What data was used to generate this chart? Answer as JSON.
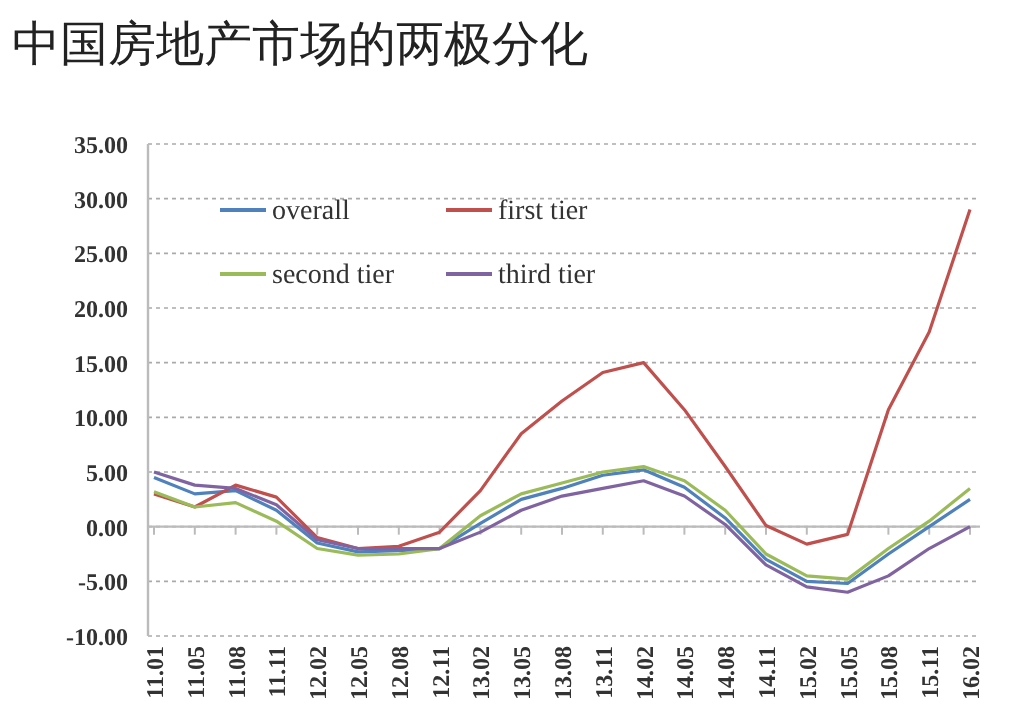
{
  "chart_data": {
    "type": "line",
    "title": "中国房地产市场的两极分化",
    "categories": [
      "11.01",
      "11.05",
      "11.08",
      "11.11",
      "12.02",
      "12.05",
      "12.08",
      "12.11",
      "13.02",
      "13.05",
      "13.08",
      "13.11",
      "14.02",
      "14.05",
      "14.08",
      "14.11",
      "15.02",
      "15.05",
      "15.08",
      "15.11",
      "16.02"
    ],
    "series": [
      {
        "name": "overall",
        "color": "#4f81bd",
        "values": [
          4.5,
          3.0,
          3.3,
          1.5,
          -1.5,
          -2.3,
          -2.2,
          -2.0,
          0.3,
          2.5,
          3.5,
          4.7,
          5.2,
          3.6,
          0.8,
          -3.0,
          -5.0,
          -5.2,
          -2.5,
          0.0,
          2.5
        ]
      },
      {
        "name": "first tier",
        "color": "#c0504d",
        "values": [
          3.0,
          1.8,
          3.8,
          2.7,
          -1.0,
          -2.0,
          -1.8,
          -0.5,
          3.3,
          8.5,
          11.5,
          14.1,
          15.0,
          10.7,
          5.5,
          0.1,
          -1.6,
          -0.7,
          10.7,
          17.8,
          29.0
        ]
      },
      {
        "name": "second tier",
        "color": "#9bbb59",
        "values": [
          3.2,
          1.8,
          2.2,
          0.5,
          -2.0,
          -2.6,
          -2.5,
          -2.0,
          1.0,
          3.0,
          4.0,
          5.0,
          5.5,
          4.2,
          1.5,
          -2.5,
          -4.5,
          -4.8,
          -2.0,
          0.5,
          3.5
        ]
      },
      {
        "name": "third tier",
        "color": "#8064a2",
        "values": [
          5.0,
          3.8,
          3.5,
          2.0,
          -1.2,
          -2.0,
          -2.0,
          -2.0,
          -0.5,
          1.5,
          2.8,
          3.5,
          4.2,
          2.8,
          0.2,
          -3.5,
          -5.5,
          -6.0,
          -4.5,
          -2.0,
          0.0
        ]
      }
    ],
    "ylim": [
      -10,
      35
    ],
    "yticks": [
      {
        "value": -10,
        "label": "-10.00"
      },
      {
        "value": -5,
        "label": "-5.00"
      },
      {
        "value": 0,
        "label": "0.00"
      },
      {
        "value": 5,
        "label": "5.00"
      },
      {
        "value": 10,
        "label": "10.00"
      },
      {
        "value": 15,
        "label": "15.00"
      },
      {
        "value": 20,
        "label": "20.00"
      },
      {
        "value": 25,
        "label": "25.00"
      },
      {
        "value": 30,
        "label": "30.00"
      },
      {
        "value": 35,
        "label": "35.00"
      }
    ],
    "grid": "y",
    "legend": "top left"
  }
}
